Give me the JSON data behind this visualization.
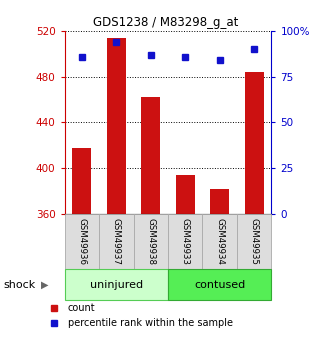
{
  "title": "GDS1238 / M83298_g_at",
  "samples": [
    "GSM49936",
    "GSM49937",
    "GSM49938",
    "GSM49933",
    "GSM49934",
    "GSM49935"
  ],
  "counts": [
    418,
    514,
    462,
    394,
    382,
    484
  ],
  "percentile_ranks": [
    86,
    94,
    87,
    86,
    84,
    90
  ],
  "ymin": 360,
  "ymax": 520,
  "yticks_left": [
    360,
    400,
    440,
    480,
    520
  ],
  "yticks_right": [
    0,
    25,
    50,
    75,
    100
  ],
  "bar_color": "#cc1111",
  "dot_color": "#1111cc",
  "groups": [
    {
      "label": "uninjured",
      "start": 0,
      "end": 3,
      "color": "#ccffcc",
      "border": "#55cc55"
    },
    {
      "label": "contused",
      "start": 3,
      "end": 6,
      "color": "#55ee55",
      "border": "#33aa33"
    }
  ],
  "group_label": "shock",
  "left_axis_color": "#cc0000",
  "right_axis_color": "#0000cc",
  "bar_width": 0.55,
  "legend_count_label": "count",
  "legend_pct_label": "percentile rank within the sample",
  "sample_box_color": "#dddddd",
  "sample_box_edge": "#aaaaaa"
}
